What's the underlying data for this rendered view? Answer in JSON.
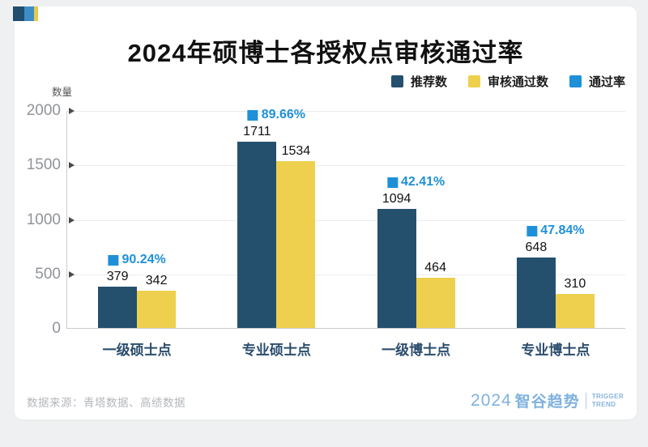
{
  "page": {
    "background": "#eef0f1",
    "card_background": "#ffffff"
  },
  "header": {
    "title": "2024年硕博士各授权点审核通过率"
  },
  "legend": {
    "items": [
      {
        "label": "推荐数",
        "color": "#24506e"
      },
      {
        "label": "审核通过数",
        "color": "#eed04e"
      },
      {
        "label": "通过率",
        "color": "#1e90d8"
      }
    ]
  },
  "axis": {
    "unit_label": "数量"
  },
  "chart_data": {
    "type": "bar",
    "title": "2024年硕博士各授权点审核通过率",
    "categories": [
      "一级硕士点",
      "专业硕士点",
      "一级博士点",
      "专业博士点"
    ],
    "series": [
      {
        "name": "推荐数",
        "type": "bar",
        "color": "#24506e",
        "values": [
          379,
          1711,
          1094,
          648
        ]
      },
      {
        "name": "审核通过数",
        "type": "bar",
        "color": "#eed04e",
        "values": [
          342,
          1534,
          464,
          310
        ]
      },
      {
        "name": "通过率",
        "type": "percent-label",
        "color": "#1e90d8",
        "values": [
          90.24,
          89.66,
          42.41,
          47.84
        ]
      }
    ],
    "ylabel": "数量",
    "xlabel": "",
    "ylim": [
      0,
      2000
    ],
    "ytick_step": 500,
    "grid": true,
    "legend_position": "top-right"
  },
  "footer": {
    "source": "数据来源：青塔数据、高绩数据",
    "logo_year": "2024",
    "logo_name": "智谷趋势",
    "logo_sub_line1": "TRIGGER",
    "logo_sub_line2": "TREND"
  }
}
